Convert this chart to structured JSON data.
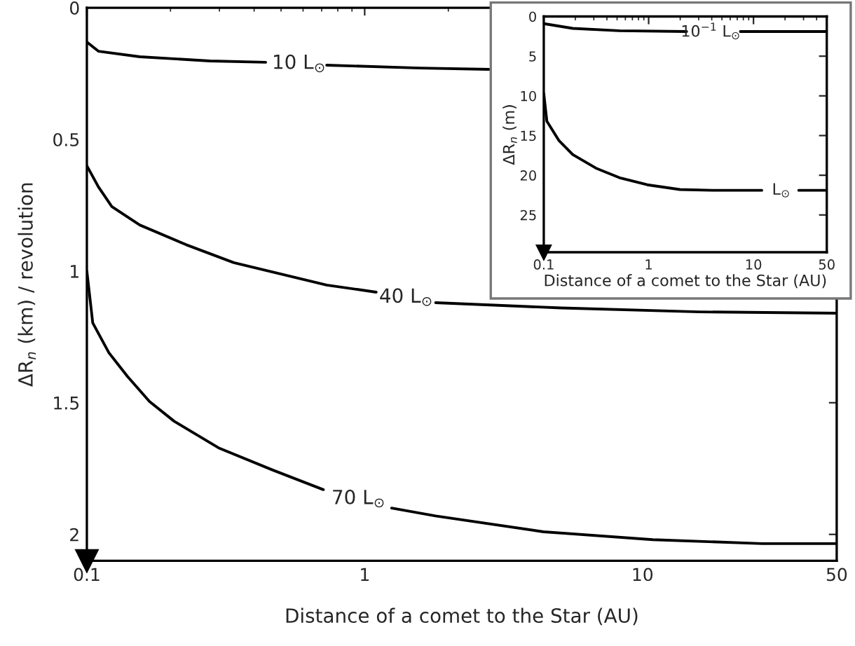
{
  "chart_data": [
    {
      "type": "line",
      "xlabel": "Distance of a comet to the Star (AU)",
      "ylabel": "ΔR$_{n}$ (km) / revolution",
      "log": "x",
      "grid": false,
      "xlim": [
        0.1,
        50
      ],
      "ylim": [
        2.1,
        0
      ],
      "xticks": [
        0.1,
        1,
        10,
        50
      ],
      "yticks": [
        0,
        0.5,
        1,
        1.5,
        2
      ],
      "series": [
        {
          "color": "#000000",
          "x": [
            0.1,
            0.11,
            0.155,
            0.277,
            0.44,
            0.58,
            0.73,
            1.58,
            2.8
          ],
          "values": [
            0.13,
            0.165,
            0.186,
            0.202,
            0.207,
            null,
            0.218,
            0.229,
            0.234
          ]
        },
        {
          "color": "#000000",
          "x": [
            0.1,
            0.11,
            0.123,
            0.155,
            0.228,
            0.338,
            0.73,
            1.1,
            1.41,
            1.8,
            5.1,
            16,
            50
          ],
          "values": [
            0.6,
            0.68,
            0.755,
            0.825,
            0.9,
            0.968,
            1.053,
            1.08,
            null,
            1.12,
            1.14,
            1.155,
            1.16
          ]
        },
        {
          "color": "#000000",
          "x": [
            0.1,
            0.105,
            0.12,
            0.14,
            0.168,
            0.206,
            0.3,
            0.465,
            0.71,
            0.95,
            1.25,
            1.8,
            4.4,
            10.9,
            27,
            50
          ],
          "values": [
            1.0,
            1.197,
            1.31,
            1.4,
            1.495,
            1.57,
            1.673,
            1.755,
            1.83,
            null,
            1.9,
            1.93,
            1.99,
            2.02,
            2.035,
            2.035
          ]
        }
      ],
      "annotations": [
        "10 L$_{⊙}$",
        "40 L$_{⊙}$",
        "70 L$_{⊙}$"
      ]
    },
    {
      "type": "line",
      "xlabel": "Distance of a comet to the Star (AU)",
      "ylabel": "ΔR$_{n}$ (m)",
      "log": "x",
      "grid": false,
      "xlim": [
        0.1,
        50
      ],
      "ylim": [
        29.7,
        0
      ],
      "xticks": [
        0.1,
        1,
        10,
        50
      ],
      "yticks": [
        0,
        5,
        10,
        15,
        20,
        25
      ],
      "series": [
        {
          "color": "#000000",
          "x": [
            0.1,
            0.189,
            0.525,
            2.3,
            3.9,
            7.5,
            50
          ],
          "values": [
            0.9,
            1.5,
            1.8,
            1.9,
            null,
            1.9,
            1.9
          ]
        },
        {
          "color": "#000000",
          "x": [
            0.1,
            0.107,
            0.139,
            0.189,
            0.314,
            0.525,
            0.97,
            1.99,
            4.04,
            12,
            18.4,
            27,
            50
          ],
          "values": [
            9.7,
            13.2,
            15.6,
            17.4,
            19.1,
            20.3,
            21.2,
            21.8,
            21.9,
            21.9,
            null,
            21.9,
            21.9
          ]
        }
      ],
      "annotations": [
        "10$^{−1}$ L$_{⊙}$",
        "L$_{⊙}$"
      ]
    }
  ]
}
